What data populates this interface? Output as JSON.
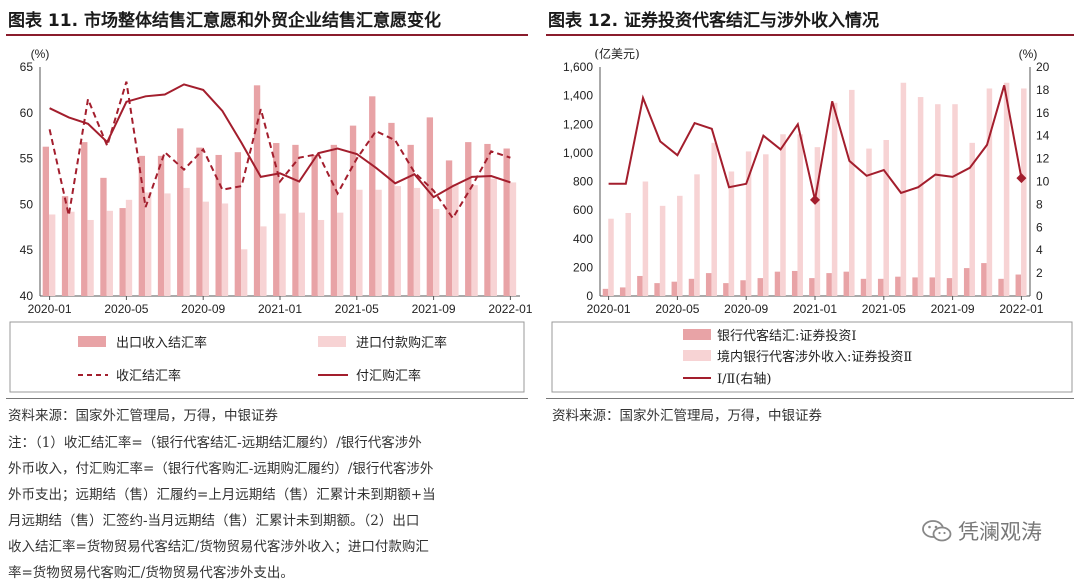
{
  "left": {
    "title": "图表 11. 市场整体结售汇意愿和外贸企业结售汇意愿变化",
    "unit": "(%)",
    "chart_data": {
      "type": "bar+line",
      "y_range": [
        40,
        65
      ],
      "y_ticks": [
        "40",
        "45",
        "50",
        "55",
        "60",
        "65"
      ],
      "x_ticks": [
        "2020-01",
        "2020-05",
        "2020-09",
        "2021-01",
        "2021-05",
        "2021-09",
        "2022-01"
      ],
      "periods": [
        "2020-01",
        "2020-02",
        "2020-03",
        "2020-04",
        "2020-05",
        "2020-06",
        "2020-07",
        "2020-08",
        "2020-09",
        "2020-10",
        "2020-11",
        "2020-12",
        "2021-01",
        "2021-02",
        "2021-03",
        "2021-04",
        "2021-05",
        "2021-06",
        "2021-07",
        "2021-08",
        "2021-09",
        "2021-10",
        "2021-11",
        "2021-12",
        "2022-01"
      ],
      "series": [
        {
          "name": "出口收入结汇率",
          "kind": "bar",
          "color": "#e8a3a6",
          "values": [
            56.3,
            50.9,
            56.8,
            52.9,
            49.6,
            55.3,
            55.3,
            58.3,
            56.2,
            55.4,
            55.7,
            63.0,
            56.7,
            56.5,
            55.4,
            56.5,
            58.6,
            61.8,
            58.9,
            56.5,
            59.5,
            54.8,
            56.8,
            56.6,
            56.1
          ]
        },
        {
          "name": "进口付款购汇率",
          "kind": "bar",
          "color": "#f7d3d4",
          "values": [
            48.9,
            49.2,
            48.3,
            49.3,
            50.5,
            51.3,
            51.2,
            51.8,
            50.3,
            50.1,
            45.1,
            47.6,
            49.0,
            49.1,
            48.3,
            49.1,
            51.6,
            51.6,
            52.0,
            51.8,
            49.5,
            52.2,
            52.1,
            52.8,
            52.4
          ]
        },
        {
          "name": "收汇结汇率",
          "kind": "line",
          "style": "dashed",
          "color": "#a31e2d",
          "values": [
            58.2,
            48.8,
            61.5,
            56.4,
            63.4,
            49.7,
            55.7,
            53.8,
            56.0,
            51.6,
            52.0,
            60.4,
            52.5,
            55.1,
            55.5,
            51.2,
            55.0,
            58.0,
            57.0,
            53.5,
            51.5,
            48.5,
            52.0,
            55.8,
            55.1
          ]
        },
        {
          "name": "付汇购汇率",
          "kind": "line",
          "style": "solid",
          "color": "#a31e2d",
          "values": [
            60.5,
            59.5,
            58.8,
            56.8,
            61.2,
            61.8,
            62.0,
            63.1,
            62.5,
            60.2,
            56.7,
            53.0,
            53.4,
            52.5,
            55.6,
            56.1,
            55.5,
            54.0,
            52.3,
            53.3,
            50.8,
            52.0,
            53.0,
            53.1,
            52.4
          ]
        }
      ]
    }
  },
  "right": {
    "title": "图表 12. 证券投资代客结汇与涉外收入情况",
    "unit_left": "(亿美元)",
    "unit_right": "(%)",
    "chart_data": {
      "type": "bar+line",
      "y_left_range": [
        0,
        1600
      ],
      "y_left_ticks": [
        "0",
        "200",
        "400",
        "600",
        "800",
        "1,000",
        "1,200",
        "1,400",
        "1,600"
      ],
      "y_right_range": [
        0,
        20
      ],
      "y_right_ticks": [
        "0",
        "2",
        "4",
        "6",
        "8",
        "10",
        "12",
        "14",
        "16",
        "18",
        "20"
      ],
      "x_ticks": [
        "2020-01",
        "2020-05",
        "2020-09",
        "2021-01",
        "2021-05",
        "2021-09",
        "2022-01"
      ],
      "periods": [
        "2020-01",
        "2020-02",
        "2020-03",
        "2020-04",
        "2020-05",
        "2020-06",
        "2020-07",
        "2020-08",
        "2020-09",
        "2020-10",
        "2020-11",
        "2020-12",
        "2021-01",
        "2021-02",
        "2021-03",
        "2021-04",
        "2021-05",
        "2021-06",
        "2021-07",
        "2021-08",
        "2021-09",
        "2021-10",
        "2021-11",
        "2021-12",
        "2022-01"
      ],
      "series": [
        {
          "name": "银行代客结汇:证券投资Ⅰ",
          "kind": "bar",
          "axis": "left",
          "color": "#e8a3a6",
          "values": [
            50,
            60,
            140,
            90,
            100,
            120,
            160,
            90,
            110,
            125,
            170,
            175,
            125,
            160,
            170,
            120,
            120,
            135,
            130,
            130,
            125,
            195,
            230,
            120,
            150
          ]
        },
        {
          "name": "境内银行代客涉外收入:证券投资Ⅱ",
          "kind": "bar",
          "axis": "left",
          "color": "#f7d3d4",
          "values": [
            540,
            580,
            800,
            630,
            700,
            850,
            1070,
            870,
            1010,
            990,
            1130,
            1130,
            1040,
            1350,
            1440,
            1030,
            1090,
            1490,
            1390,
            1340,
            1340,
            1070,
            1450,
            1490,
            1450
          ]
        },
        {
          "name": "Ⅰ/Ⅱ(右轴)",
          "kind": "line",
          "axis": "right",
          "color": "#a31e2d",
          "values": [
            9.8,
            9.8,
            17.3,
            13.5,
            12.3,
            15.1,
            14.6,
            9.5,
            9.8,
            14.0,
            12.8,
            15.0,
            8.4,
            17.0,
            11.8,
            10.5,
            11.0,
            9.0,
            9.5,
            10.6,
            10.4,
            11.2,
            13.2,
            18.4,
            10.3
          ]
        }
      ]
    }
  },
  "source_left": "资料来源：国家外汇管理局，万得，中银证券",
  "source_right": "资料来源：国家外汇管理局，万得，中银证券",
  "note_lines": [
    "注：（1）收汇结汇率=（银行代客结汇-远期结汇履约）/银行代客涉外",
    "外币收入，付汇购汇率=（银行代客购汇-远期购汇履约）/银行代客涉外",
    "外币支出；远期结（售）汇履约=上月远期结（售）汇累计未到期额+当",
    "月远期结（售）汇签约-当月远期结（售）汇累计未到期额。（2）出口",
    "收入结汇率=货物贸易代客结汇/货物贸易代客涉外收入；进口付款购汇",
    "率=货物贸易代客购汇/货物贸易代客涉外支出。"
  ],
  "watermark": "凭澜观涛",
  "colors": {
    "accent": "#a31e2d",
    "bar_dark": "#e8a3a6",
    "bar_light": "#f7d3d4",
    "rule": "#8a1c2c"
  }
}
